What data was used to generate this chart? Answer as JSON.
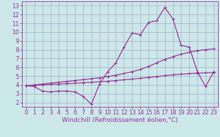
{
  "x": [
    0,
    1,
    2,
    3,
    4,
    5,
    6,
    7,
    8,
    9,
    10,
    11,
    12,
    13,
    14,
    15,
    16,
    17,
    18,
    19,
    20,
    21,
    22,
    23
  ],
  "y_main": [
    3.9,
    3.8,
    3.3,
    3.2,
    3.3,
    3.3,
    3.2,
    2.7,
    1.8,
    4.1,
    5.5,
    6.5,
    8.3,
    9.9,
    9.7,
    11.1,
    11.3,
    12.8,
    11.5,
    8.5,
    8.3,
    5.5,
    3.8,
    5.5
  ],
  "y_upper": [
    3.9,
    4.0,
    4.1,
    4.2,
    4.3,
    4.4,
    4.5,
    4.6,
    4.7,
    4.8,
    4.95,
    5.1,
    5.3,
    5.5,
    5.75,
    6.1,
    6.5,
    6.9,
    7.2,
    7.5,
    7.7,
    7.9,
    8.0,
    8.1
  ],
  "y_lower": [
    3.9,
    3.95,
    4.0,
    4.05,
    4.1,
    4.15,
    4.2,
    4.25,
    4.3,
    4.35,
    4.42,
    4.5,
    4.58,
    4.66,
    4.75,
    4.85,
    4.95,
    5.05,
    5.15,
    5.22,
    5.28,
    5.33,
    5.37,
    5.4
  ],
  "line_color": "#993399",
  "bg_color": "#cce8e8",
  "grid_color": "#aaaacc",
  "xlabel": "Windchill (Refroidissement éolien,°C)",
  "xlim": [
    -0.5,
    23.5
  ],
  "ylim": [
    1.5,
    13.5
  ],
  "yticks": [
    2,
    3,
    4,
    5,
    6,
    7,
    8,
    9,
    10,
    11,
    12,
    13
  ],
  "xticks": [
    0,
    1,
    2,
    3,
    4,
    5,
    6,
    7,
    8,
    9,
    10,
    11,
    12,
    13,
    14,
    15,
    16,
    17,
    18,
    19,
    20,
    21,
    22,
    23
  ],
  "xlabel_fontsize": 6.5,
  "tick_fontsize": 6,
  "line_width": 0.9,
  "marker": "+",
  "marker_size": 3.5,
  "marker_lw": 0.8
}
